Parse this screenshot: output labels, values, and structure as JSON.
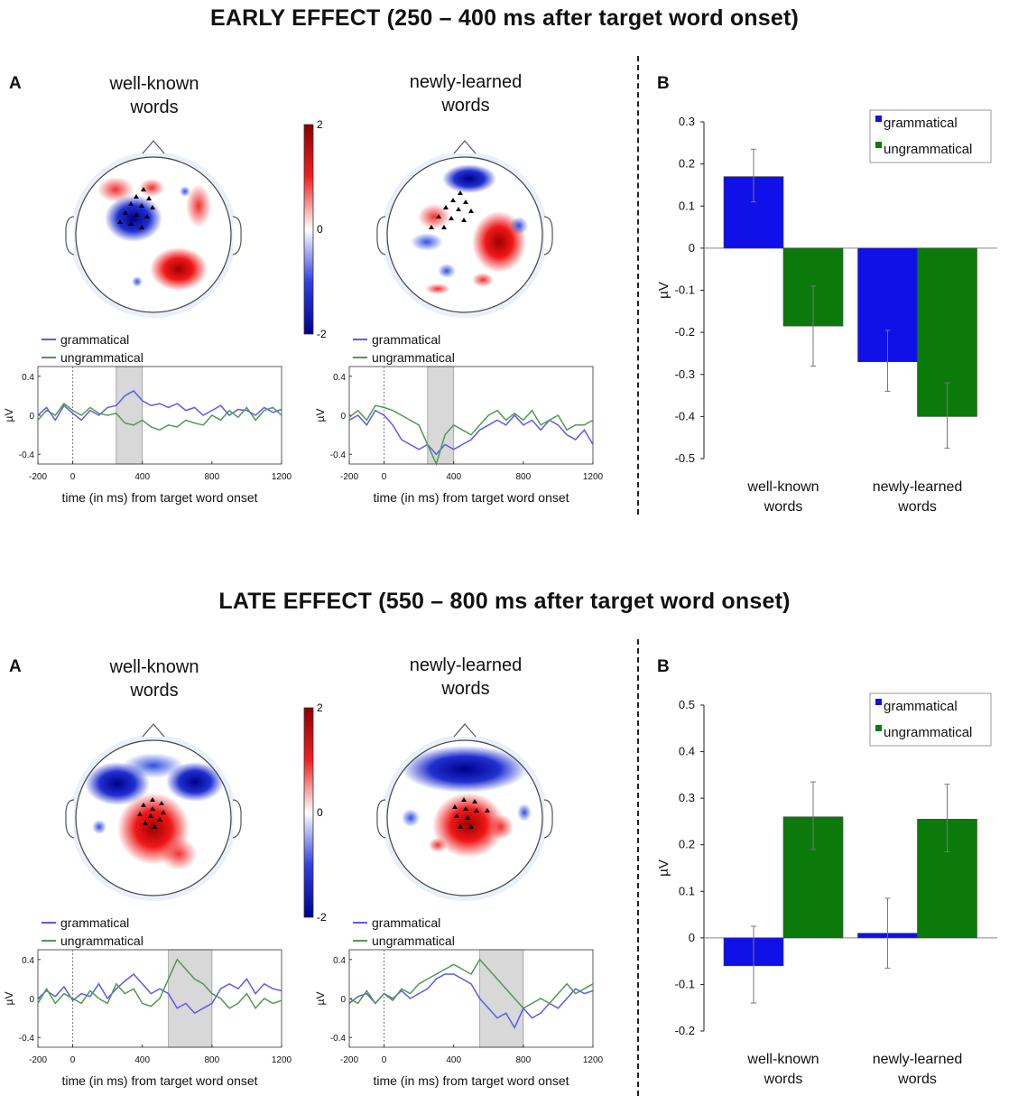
{
  "sections": [
    {
      "title": "EARLY EFFECT (250 – 400 ms after target word onset)",
      "panel_a_label": "A",
      "panel_b_label": "B",
      "topo_titles": [
        [
          "well-known",
          "words"
        ],
        [
          "newly-learned",
          "words"
        ]
      ],
      "colorbar_ticks": [
        "2",
        "0",
        "-2"
      ],
      "erp_legend": [
        "grammatical",
        "ungrammatical"
      ],
      "erp_ylabel": "µV",
      "erp_xlabel": "time (in ms) from target word onset",
      "erp_xticks": [
        "-200",
        "0",
        "400",
        "800",
        "1200"
      ],
      "erp_yticks": [
        "0.4",
        "0",
        "-0.4"
      ],
      "window_ms": [
        250,
        400
      ]
    },
    {
      "title": "LATE EFFECT (550 – 800 ms after target word onset)",
      "panel_a_label": "A",
      "panel_b_label": "B",
      "topo_titles": [
        [
          "well-known",
          "words"
        ],
        [
          "newly-learned",
          "words"
        ]
      ],
      "colorbar_ticks": [
        "2",
        "0",
        "-2"
      ],
      "erp_legend": [
        "grammatical",
        "ungrammatical"
      ],
      "erp_ylabel": "µV",
      "erp_xlabel": "time (in ms) from target word onset",
      "erp_xticks": [
        "-200",
        "0",
        "400",
        "800",
        "1200"
      ],
      "erp_yticks": [
        "0.4",
        "0",
        "-0.4"
      ],
      "window_ms": [
        550,
        800
      ]
    }
  ],
  "colors": {
    "grammatical": "#1010e8",
    "ungrammatical": "#0b7a0b",
    "erp_grammatical": "#5a5af0",
    "erp_ungrammatical": "#4f9a4f",
    "window_shade": "#d8d8d8"
  },
  "chart_data": [
    {
      "type": "bar",
      "panel": "EARLY EFFECT B",
      "categories": [
        [
          "well-known",
          "words"
        ],
        [
          "newly-learned",
          "words"
        ]
      ],
      "series": [
        {
          "name": "grammatical",
          "values": [
            0.17,
            -0.27
          ],
          "err_low": [
            0.11,
            -0.34
          ],
          "err_high": [
            0.235,
            -0.195
          ]
        },
        {
          "name": "ungrammatical",
          "values": [
            -0.185,
            -0.4
          ],
          "err_low": [
            -0.28,
            -0.475
          ],
          "err_high": [
            -0.09,
            -0.32
          ]
        }
      ],
      "ylabel": "µV",
      "ylim": [
        -0.5,
        0.3
      ],
      "yticks": [
        "0.3",
        "0.2",
        "0.1",
        "0",
        "-0.1",
        "-0.2",
        "-0.3",
        "-0.4",
        "-0.5"
      ],
      "legend_position": "top-right"
    },
    {
      "type": "bar",
      "panel": "LATE EFFECT B",
      "categories": [
        [
          "well-known",
          "words"
        ],
        [
          "newly-learned",
          "words"
        ]
      ],
      "series": [
        {
          "name": "grammatical",
          "values": [
            -0.06,
            0.01
          ],
          "err_low": [
            -0.14,
            -0.065
          ],
          "err_high": [
            0.025,
            0.085
          ]
        },
        {
          "name": "ungrammatical",
          "values": [
            0.26,
            0.255
          ],
          "err_low": [
            0.19,
            0.185
          ],
          "err_high": [
            0.335,
            0.33
          ]
        }
      ],
      "ylabel": "µV",
      "ylim": [
        -0.2,
        0.5
      ],
      "yticks": [
        "0.5",
        "0.4",
        "0.3",
        "0.2",
        "0.1",
        "0",
        "-0.1",
        "-0.2"
      ],
      "legend_position": "top-right"
    },
    {
      "type": "line",
      "panel": "EARLY EFFECT A well-known words",
      "x": [
        -200,
        -150,
        -100,
        -50,
        0,
        50,
        100,
        150,
        200,
        250,
        300,
        350,
        400,
        450,
        500,
        550,
        600,
        650,
        700,
        750,
        800,
        850,
        900,
        950,
        1000,
        1050,
        1100,
        1150,
        1200
      ],
      "series": [
        {
          "name": "grammatical",
          "values": [
            0,
            0.08,
            -0.05,
            0.1,
            0.02,
            -0.05,
            0.05,
            0.0,
            0.08,
            0.1,
            0.2,
            0.25,
            0.15,
            0.1,
            0.12,
            0.08,
            0.12,
            0.05,
            0.08,
            0.0,
            0.05,
            0.1,
            0.0,
            0.06,
            0.05,
            0.0,
            0.08,
            0.03,
            0.06
          ]
        },
        {
          "name": "ungrammatical",
          "values": [
            -0.05,
            0.05,
            0.0,
            0.12,
            0.05,
            0.0,
            0.08,
            0.02,
            0.0,
            0.02,
            -0.08,
            -0.1,
            -0.05,
            -0.12,
            -0.15,
            -0.1,
            -0.12,
            -0.05,
            -0.08,
            -0.1,
            0.0,
            -0.05,
            0.05,
            -0.02,
            0.08,
            -0.05,
            0.05,
            0.08,
            0.0
          ]
        }
      ],
      "ylim": [
        -0.5,
        0.5
      ]
    },
    {
      "type": "line",
      "panel": "EARLY EFFECT A newly-learned words",
      "x": [
        -200,
        -150,
        -100,
        -50,
        0,
        50,
        100,
        150,
        200,
        250,
        300,
        350,
        400,
        450,
        500,
        550,
        600,
        650,
        700,
        750,
        800,
        850,
        900,
        950,
        1000,
        1050,
        1100,
        1150,
        1200
      ],
      "series": [
        {
          "name": "grammatical",
          "values": [
            -0.05,
            0.0,
            -0.1,
            0.05,
            0.0,
            -0.1,
            -0.25,
            -0.3,
            -0.35,
            -0.3,
            -0.4,
            -0.3,
            -0.35,
            -0.3,
            -0.25,
            -0.15,
            -0.1,
            -0.05,
            -0.1,
            0.0,
            -0.1,
            -0.05,
            -0.15,
            -0.05,
            -0.1,
            -0.2,
            -0.25,
            -0.15,
            -0.3
          ]
        },
        {
          "name": "ungrammatical",
          "values": [
            -0.02,
            0.05,
            -0.05,
            0.1,
            0.08,
            0.05,
            0.0,
            -0.05,
            -0.1,
            -0.3,
            -0.5,
            -0.2,
            -0.1,
            -0.15,
            -0.2,
            -0.1,
            0.0,
            0.05,
            -0.05,
            0.02,
            -0.05,
            0.05,
            -0.1,
            -0.05,
            0.0,
            -0.15,
            -0.1,
            -0.1,
            -0.05
          ]
        }
      ],
      "ylim": [
        -0.5,
        0.5
      ]
    },
    {
      "type": "line",
      "panel": "LATE EFFECT A well-known words",
      "x": [
        -200,
        -150,
        -100,
        -50,
        0,
        50,
        100,
        150,
        200,
        250,
        300,
        350,
        400,
        450,
        500,
        550,
        600,
        650,
        700,
        750,
        800,
        850,
        900,
        950,
        1000,
        1050,
        1100,
        1150,
        1200
      ],
      "series": [
        {
          "name": "grammatical",
          "values": [
            0.0,
            0.08,
            0.02,
            0.12,
            -0.02,
            0.05,
            0.02,
            0.15,
            0.0,
            0.1,
            0.18,
            0.25,
            0.15,
            0.05,
            0.1,
            0.05,
            -0.1,
            -0.05,
            -0.15,
            -0.1,
            -0.05,
            0.1,
            0.15,
            0.1,
            0.2,
            0.05,
            0.15,
            0.1,
            0.08
          ]
        },
        {
          "name": "ungrammatical",
          "values": [
            -0.05,
            0.1,
            -0.05,
            0.05,
            0.0,
            -0.05,
            0.08,
            0.0,
            -0.05,
            0.15,
            0.05,
            0.1,
            -0.05,
            -0.08,
            0.0,
            0.2,
            0.4,
            0.3,
            0.2,
            0.15,
            0.05,
            0.0,
            -0.1,
            -0.05,
            0.05,
            -0.1,
            0.0,
            -0.05,
            -0.02
          ]
        }
      ],
      "ylim": [
        -0.5,
        0.5
      ]
    },
    {
      "type": "line",
      "panel": "LATE EFFECT A newly-learned words",
      "x": [
        -200,
        -150,
        -100,
        -50,
        0,
        50,
        100,
        150,
        200,
        250,
        300,
        350,
        400,
        450,
        500,
        550,
        600,
        650,
        700,
        750,
        800,
        850,
        900,
        950,
        1000,
        1050,
        1100,
        1150,
        1200
      ],
      "series": [
        {
          "name": "grammatical",
          "values": [
            -0.05,
            0.02,
            0.05,
            -0.05,
            0.05,
            0.0,
            0.08,
            0.0,
            0.05,
            0.1,
            0.2,
            0.25,
            0.25,
            0.2,
            0.15,
            0.0,
            -0.1,
            -0.2,
            -0.15,
            -0.3,
            -0.1,
            -0.2,
            -0.15,
            -0.05,
            -0.1,
            0.0,
            0.1,
            0.05,
            0.08
          ]
        },
        {
          "name": "ungrammatical",
          "values": [
            0.0,
            -0.05,
            0.08,
            -0.05,
            0.05,
            -0.02,
            0.1,
            0.05,
            0.15,
            0.2,
            0.25,
            0.3,
            0.35,
            0.3,
            0.25,
            0.4,
            0.3,
            0.2,
            0.1,
            0.0,
            -0.1,
            -0.05,
            0.0,
            -0.05,
            0.05,
            0.15,
            0.05,
            0.1,
            0.15
          ]
        }
      ],
      "ylim": [
        -0.5,
        0.5
      ]
    }
  ]
}
